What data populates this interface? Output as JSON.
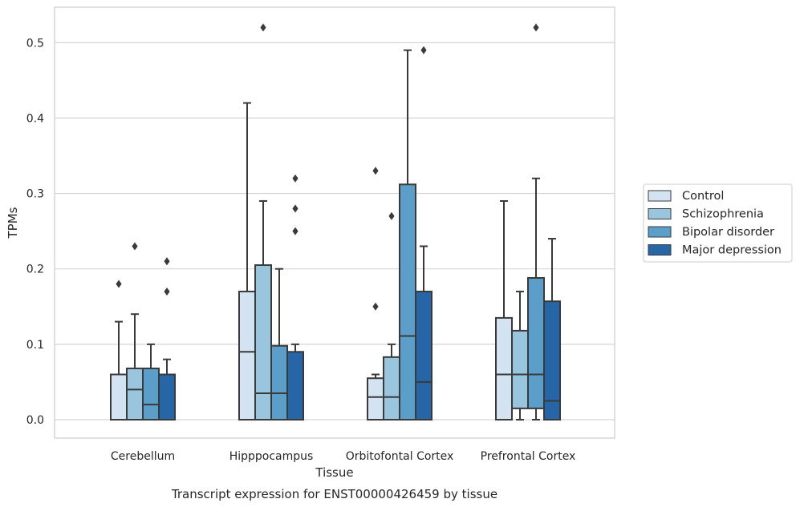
{
  "chart_data": {
    "type": "box",
    "caption": "Transcript expression for ENST00000426459 by tissue",
    "xlabel": "Tissue",
    "ylabel": "TPMs",
    "ylim": [
      -0.025,
      0.548
    ],
    "yticks": [
      "0.0",
      "0.1",
      "0.2",
      "0.3",
      "0.4",
      "0.5"
    ],
    "ytick_values": [
      0.0,
      0.1,
      0.2,
      0.3,
      0.4,
      0.5
    ],
    "grid": "horizontal",
    "legend_position": "right",
    "categories": [
      "Cerebellum",
      "Hipppocampus",
      "Orbitofontal Cortex",
      "Prefrontal Cortex"
    ],
    "series": [
      {
        "name": "Control",
        "color": "#d3e3f2",
        "boxes": [
          {
            "low": 0.0,
            "q1": 0.0,
            "median": 0.0,
            "q3": 0.06,
            "high": 0.13,
            "outliers": [
              0.18
            ]
          },
          {
            "low": 0.0,
            "q1": 0.0,
            "median": 0.09,
            "q3": 0.17,
            "high": 0.42,
            "outliers": []
          },
          {
            "low": 0.0,
            "q1": 0.0,
            "median": 0.03,
            "q3": 0.055,
            "high": 0.06,
            "outliers": [
              0.15,
              0.33
            ]
          },
          {
            "low": 0.0,
            "q1": 0.0,
            "median": 0.06,
            "q3": 0.135,
            "high": 0.29,
            "outliers": []
          }
        ]
      },
      {
        "name": "Schizophrenia",
        "color": "#9ac5df",
        "boxes": [
          {
            "low": 0.0,
            "q1": 0.0,
            "median": 0.04,
            "q3": 0.068,
            "high": 0.14,
            "outliers": [
              0.23
            ]
          },
          {
            "low": 0.0,
            "q1": 0.0,
            "median": 0.035,
            "q3": 0.205,
            "high": 0.29,
            "outliers": [
              0.52
            ]
          },
          {
            "low": 0.0,
            "q1": 0.0,
            "median": 0.03,
            "q3": 0.083,
            "high": 0.1,
            "outliers": [
              0.27
            ]
          },
          {
            "low": 0.0,
            "q1": 0.015,
            "median": 0.06,
            "q3": 0.118,
            "high": 0.17,
            "outliers": []
          }
        ]
      },
      {
        "name": "Bipolar disorder",
        "color": "#5a9ec9",
        "boxes": [
          {
            "low": 0.0,
            "q1": 0.0,
            "median": 0.02,
            "q3": 0.068,
            "high": 0.1,
            "outliers": []
          },
          {
            "low": 0.0,
            "q1": 0.0,
            "median": 0.035,
            "q3": 0.098,
            "high": 0.2,
            "outliers": []
          },
          {
            "low": 0.0,
            "q1": 0.0,
            "median": 0.111,
            "q3": 0.312,
            "high": 0.49,
            "outliers": []
          },
          {
            "low": 0.0,
            "q1": 0.015,
            "median": 0.06,
            "q3": 0.188,
            "high": 0.32,
            "outliers": [
              0.52
            ]
          }
        ]
      },
      {
        "name": "Major depression",
        "color": "#2666a6",
        "boxes": [
          {
            "low": 0.0,
            "q1": 0.0,
            "median": 0.0,
            "q3": 0.06,
            "high": 0.08,
            "outliers": [
              0.17,
              0.21
            ]
          },
          {
            "low": 0.0,
            "q1": 0.0,
            "median": 0.0,
            "q3": 0.09,
            "high": 0.1,
            "outliers": [
              0.25,
              0.28,
              0.32
            ]
          },
          {
            "low": 0.0,
            "q1": 0.0,
            "median": 0.05,
            "q3": 0.17,
            "high": 0.23,
            "outliers": [
              0.49
            ]
          },
          {
            "low": 0.0,
            "q1": 0.0,
            "median": 0.025,
            "q3": 0.157,
            "high": 0.24,
            "outliers": []
          }
        ]
      }
    ]
  }
}
